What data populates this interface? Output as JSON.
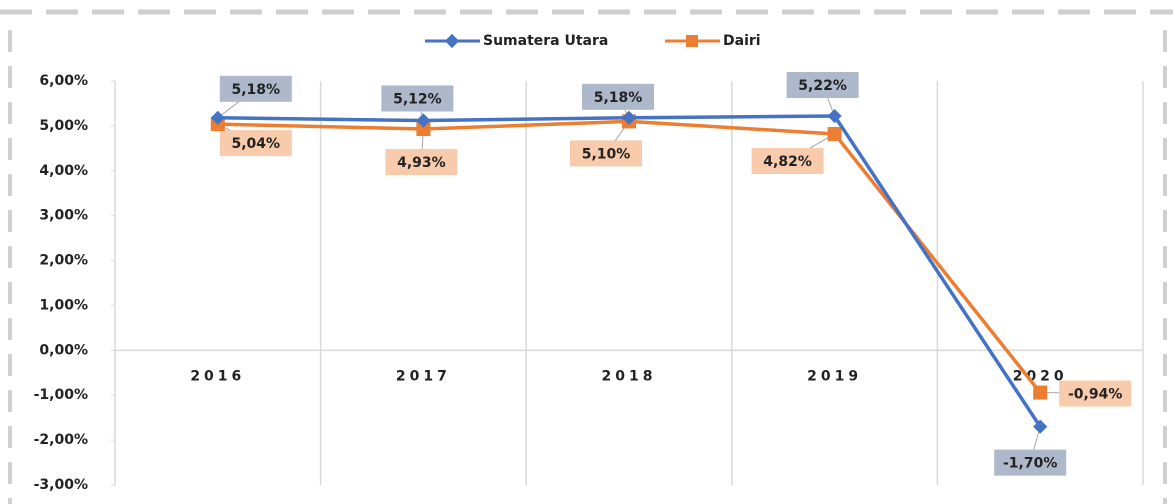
{
  "chart_data": {
    "type": "line",
    "categories": [
      "2016",
      "2017",
      "2018",
      "2019",
      "2020"
    ],
    "series": [
      {
        "name": "Sumatera Utara",
        "color": "#4472c4",
        "values": [
          5.18,
          5.12,
          5.18,
          5.22,
          -1.7
        ],
        "value_labels": [
          "5,18%",
          "5,12%",
          "5,18%",
          "5,22%",
          "-1,70%"
        ]
      },
      {
        "name": "Dairi",
        "color": "#ed7d31",
        "values": [
          5.04,
          4.93,
          5.1,
          4.82,
          -0.94
        ],
        "value_labels": [
          "5,04%",
          "4,93%",
          "5,10%",
          "4,82%",
          "-0,94%"
        ]
      }
    ],
    "ylim": [
      -3,
      6
    ],
    "yticks": [
      {
        "value": 6,
        "label": "6,00%"
      },
      {
        "value": 5,
        "label": "5,00%"
      },
      {
        "value": 4,
        "label": "4,00%"
      },
      {
        "value": 3,
        "label": "3,00%"
      },
      {
        "value": 2,
        "label": "2,00%"
      },
      {
        "value": 1,
        "label": "1,00%"
      },
      {
        "value": 0,
        "label": "0,00%"
      },
      {
        "value": -1,
        "label": "-1,00%"
      },
      {
        "value": -2,
        "label": "-2,00%"
      },
      {
        "value": -3,
        "label": "-3,00%"
      }
    ],
    "legend": "top",
    "grid": true
  }
}
